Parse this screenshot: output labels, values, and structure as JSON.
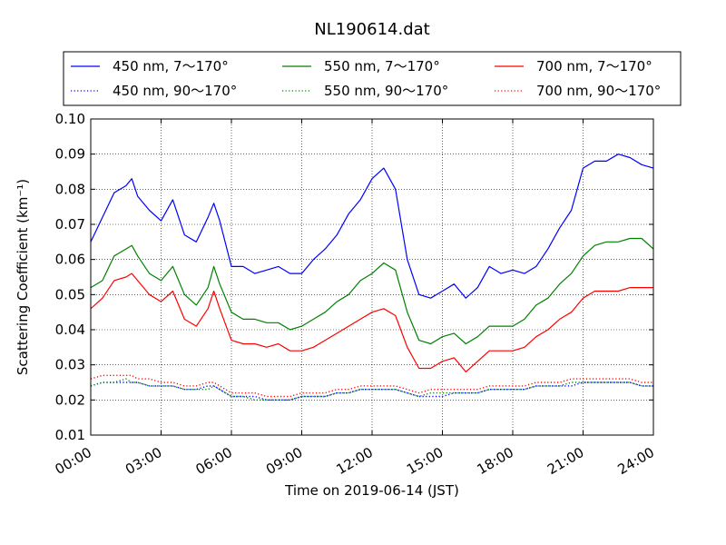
{
  "chart_data": {
    "type": "line",
    "title": "NL190614.dat",
    "xlabel": "Time on 2019-06-14 (JST)",
    "ylabel": "Scattering Coefficient (km⁻¹)",
    "xlim": [
      "00:00",
      "24:00"
    ],
    "ylim": [
      0.01,
      0.1
    ],
    "x_ticks": [
      "00:00",
      "03:00",
      "06:00",
      "09:00",
      "12:00",
      "15:00",
      "18:00",
      "21:00",
      "24:00"
    ],
    "y_ticks": [
      "0.01",
      "0.02",
      "0.03",
      "0.04",
      "0.05",
      "0.06",
      "0.07",
      "0.08",
      "0.09",
      "0.10"
    ],
    "grid": true,
    "legend_position": "top-outside",
    "x_hours": [
      0,
      0.5,
      1,
      1.5,
      1.75,
      2,
      2.5,
      3,
      3.5,
      4,
      4.5,
      5,
      5.25,
      5.5,
      6,
      6.5,
      7,
      7.5,
      8,
      8.5,
      9,
      9.5,
      10,
      10.5,
      11,
      11.5,
      12,
      12.5,
      13,
      13.5,
      14,
      14.5,
      15,
      15.5,
      16,
      16.5,
      17,
      17.5,
      18,
      18.5,
      19,
      19.5,
      20,
      20.5,
      21,
      21.5,
      22,
      22.5,
      23,
      23.5,
      24
    ],
    "series": [
      {
        "name": "450 nm, 7～170°",
        "color": "#0000ff",
        "style": "solid",
        "values": [
          0.065,
          0.072,
          0.079,
          0.081,
          0.083,
          0.078,
          0.074,
          0.071,
          0.077,
          0.067,
          0.065,
          0.072,
          0.076,
          0.071,
          0.058,
          0.058,
          0.056,
          0.057,
          0.058,
          0.056,
          0.056,
          0.06,
          0.063,
          0.067,
          0.073,
          0.077,
          0.083,
          0.086,
          0.08,
          0.06,
          0.05,
          0.049,
          0.051,
          0.053,
          0.049,
          0.052,
          0.058,
          0.056,
          0.057,
          0.056,
          0.058,
          0.063,
          0.069,
          0.074,
          0.086,
          0.088,
          0.088,
          0.09,
          0.089,
          0.087,
          0.086
        ]
      },
      {
        "name": "550 nm, 7～170°",
        "color": "#008000",
        "style": "solid",
        "values": [
          0.052,
          0.054,
          0.061,
          0.063,
          0.064,
          0.061,
          0.056,
          0.054,
          0.058,
          0.05,
          0.047,
          0.052,
          0.058,
          0.053,
          0.045,
          0.043,
          0.043,
          0.042,
          0.042,
          0.04,
          0.041,
          0.043,
          0.045,
          0.048,
          0.05,
          0.054,
          0.056,
          0.059,
          0.057,
          0.045,
          0.037,
          0.036,
          0.038,
          0.039,
          0.036,
          0.038,
          0.041,
          0.041,
          0.041,
          0.043,
          0.047,
          0.049,
          0.053,
          0.056,
          0.061,
          0.064,
          0.065,
          0.065,
          0.066,
          0.066,
          0.063
        ]
      },
      {
        "name": "700 nm, 7～170°",
        "color": "#ff0000",
        "style": "solid",
        "values": [
          0.046,
          0.049,
          0.054,
          0.055,
          0.056,
          0.054,
          0.05,
          0.048,
          0.051,
          0.043,
          0.041,
          0.046,
          0.051,
          0.046,
          0.037,
          0.036,
          0.036,
          0.035,
          0.036,
          0.034,
          0.034,
          0.035,
          0.037,
          0.039,
          0.041,
          0.043,
          0.045,
          0.046,
          0.044,
          0.035,
          0.029,
          0.029,
          0.031,
          0.032,
          0.028,
          0.031,
          0.034,
          0.034,
          0.034,
          0.035,
          0.038,
          0.04,
          0.043,
          0.045,
          0.049,
          0.051,
          0.051,
          0.051,
          0.052,
          0.052,
          0.052
        ]
      },
      {
        "name": "450 nm, 90～170°",
        "color": "#0000ff",
        "style": "dotted",
        "values": [
          0.024,
          0.025,
          0.025,
          0.025,
          0.025,
          0.025,
          0.024,
          0.024,
          0.024,
          0.023,
          0.023,
          0.024,
          0.024,
          0.023,
          0.021,
          0.021,
          0.021,
          0.02,
          0.02,
          0.02,
          0.021,
          0.021,
          0.021,
          0.022,
          0.022,
          0.023,
          0.023,
          0.023,
          0.023,
          0.022,
          0.021,
          0.021,
          0.021,
          0.022,
          0.022,
          0.022,
          0.023,
          0.023,
          0.023,
          0.023,
          0.024,
          0.024,
          0.024,
          0.024,
          0.025,
          0.025,
          0.025,
          0.025,
          0.025,
          0.024,
          0.024
        ]
      },
      {
        "name": "550 nm, 90～170°",
        "color": "#008000",
        "style": "dotted",
        "values": [
          0.024,
          0.025,
          0.025,
          0.026,
          0.025,
          0.025,
          0.024,
          0.024,
          0.024,
          0.023,
          0.023,
          0.023,
          0.024,
          0.023,
          0.021,
          0.021,
          0.02,
          0.02,
          0.02,
          0.02,
          0.021,
          0.021,
          0.021,
          0.022,
          0.022,
          0.023,
          0.023,
          0.023,
          0.023,
          0.022,
          0.021,
          0.022,
          0.022,
          0.022,
          0.022,
          0.022,
          0.023,
          0.023,
          0.023,
          0.023,
          0.024,
          0.024,
          0.024,
          0.025,
          0.025,
          0.025,
          0.025,
          0.025,
          0.025,
          0.024,
          0.024
        ]
      },
      {
        "name": "700 nm, 90～170°",
        "color": "#ff0000",
        "style": "dotted",
        "values": [
          0.026,
          0.027,
          0.027,
          0.027,
          0.027,
          0.026,
          0.026,
          0.025,
          0.025,
          0.024,
          0.024,
          0.025,
          0.025,
          0.024,
          0.022,
          0.022,
          0.022,
          0.021,
          0.021,
          0.021,
          0.022,
          0.022,
          0.022,
          0.023,
          0.023,
          0.024,
          0.024,
          0.024,
          0.024,
          0.023,
          0.022,
          0.023,
          0.023,
          0.023,
          0.023,
          0.023,
          0.024,
          0.024,
          0.024,
          0.024,
          0.025,
          0.025,
          0.025,
          0.026,
          0.026,
          0.026,
          0.026,
          0.026,
          0.026,
          0.025,
          0.025
        ]
      }
    ]
  }
}
